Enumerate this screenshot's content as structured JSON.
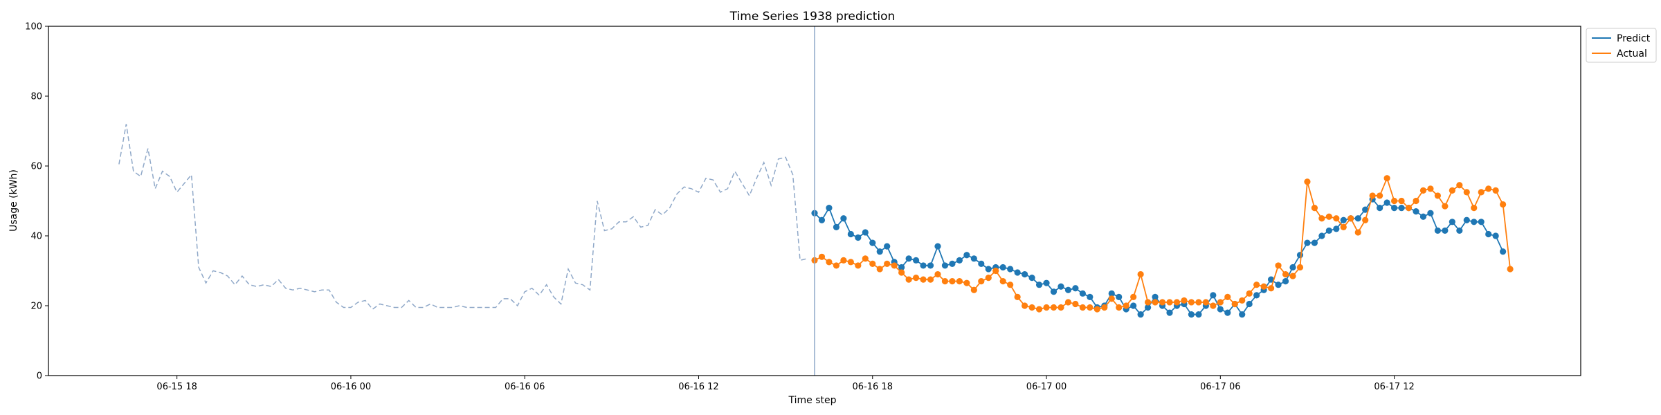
{
  "chart_data": {
    "type": "line",
    "title": "Time Series 1938 prediction",
    "xlabel": "Time step",
    "ylabel": "Usage (kWh)",
    "ylim": [
      0,
      100
    ],
    "yticks": [
      0,
      20,
      40,
      60,
      80,
      100
    ],
    "xlim": [
      "2023-06-15 13:34",
      "2023-06-17 18:26"
    ],
    "xticks": [
      {
        "value": "2023-06-15 18:00",
        "label": "06-15 18"
      },
      {
        "value": "2023-06-16 00:00",
        "label": "06-16 00"
      },
      {
        "value": "2023-06-16 06:00",
        "label": "06-16 06"
      },
      {
        "value": "2023-06-16 12:00",
        "label": "06-16 12"
      },
      {
        "value": "2023-06-16 18:00",
        "label": "06-16 18"
      },
      {
        "value": "2023-06-17 00:00",
        "label": "06-17 00"
      },
      {
        "value": "2023-06-17 06:00",
        "label": "06-17 06"
      },
      {
        "value": "2023-06-17 12:00",
        "label": "06-17 12"
      }
    ],
    "grid": false,
    "legend_position": "top-right",
    "forecast_start": "2023-06-16 16:00",
    "series": [
      {
        "name": "",
        "role": "history",
        "style": "dashed",
        "color": "#8fa8c8",
        "start": "2023-06-15 16:00",
        "step_minutes": 15,
        "values": [
          60.5,
          72.0,
          58.5,
          57.0,
          65.0,
          53.5,
          58.5,
          57.0,
          52.5,
          55.0,
          57.5,
          31.0,
          26.5,
          30.0,
          29.5,
          28.5,
          26.0,
          28.5,
          26.0,
          25.5,
          26.0,
          25.5,
          27.5,
          25.0,
          24.5,
          25.0,
          24.5,
          24.0,
          24.5,
          24.5,
          21.0,
          19.5,
          19.5,
          21.0,
          21.5,
          19.0,
          20.5,
          20.0,
          19.5,
          19.5,
          21.5,
          19.5,
          19.5,
          20.5,
          19.5,
          19.5,
          19.5,
          20.0,
          19.5,
          19.5,
          19.5,
          19.5,
          19.5,
          22.0,
          22.0,
          20.0,
          24.0,
          25.0,
          23.0,
          26.0,
          22.5,
          20.5,
          30.5,
          26.5,
          26.0,
          24.5,
          50.0,
          41.5,
          42.0,
          44.0,
          44.0,
          45.5,
          42.5,
          43.0,
          47.5,
          46.0,
          48.0,
          52.0,
          54.0,
          53.5,
          52.5,
          56.5,
          56.0,
          52.5,
          53.5,
          58.5,
          55.0,
          51.5,
          56.5,
          61.0,
          54.5,
          62.0,
          62.5,
          57.5,
          33.0,
          33.5
        ]
      },
      {
        "name": "Predict",
        "role": "prediction",
        "style": "line-marker",
        "color": "#1f77b4",
        "start": "2023-06-16 16:00",
        "step_minutes": 15,
        "values": [
          46.5,
          44.5,
          48.0,
          42.5,
          45.0,
          40.5,
          39.5,
          41.0,
          38.0,
          35.5,
          37.0,
          32.5,
          31.0,
          33.5,
          33.0,
          31.5,
          31.5,
          37.0,
          31.5,
          32.0,
          33.0,
          34.5,
          33.5,
          32.0,
          30.5,
          31.0,
          31.0,
          30.5,
          29.5,
          29.0,
          28.0,
          26.0,
          26.5,
          24.0,
          25.5,
          24.5,
          25.0,
          23.5,
          22.5,
          19.5,
          20.0,
          23.5,
          22.5,
          19.0,
          20.0,
          17.5,
          19.5,
          22.5,
          20.0,
          18.0,
          20.0,
          20.5,
          17.5,
          17.5,
          20.0,
          23.0,
          19.0,
          18.0,
          20.5,
          17.5,
          20.5,
          23.0,
          24.5,
          27.5,
          26.0,
          27.0,
          31.0,
          34.5,
          38.0,
          38.0,
          40.0,
          41.5,
          42.0,
          44.5,
          45.0,
          45.0,
          47.5,
          50.5,
          48.0,
          49.5,
          48.0,
          48.0,
          48.0,
          47.0,
          45.5,
          46.5,
          41.5,
          41.5,
          44.0,
          41.5,
          44.5,
          44.0,
          44.0,
          40.5,
          40.0,
          35.5
        ]
      },
      {
        "name": "Actual",
        "role": "actual",
        "style": "line-marker",
        "color": "#ff7f0e",
        "start": "2023-06-16 16:00",
        "step_minutes": 15,
        "values": [
          33.0,
          34.0,
          32.5,
          31.5,
          33.0,
          32.5,
          31.5,
          33.5,
          32.0,
          30.5,
          32.0,
          31.5,
          29.5,
          27.5,
          28.0,
          27.5,
          27.5,
          29.0,
          27.0,
          27.0,
          27.0,
          26.5,
          24.5,
          27.0,
          28.0,
          30.0,
          27.0,
          26.0,
          22.5,
          20.0,
          19.5,
          19.0,
          19.5,
          19.5,
          19.5,
          21.0,
          20.5,
          19.5,
          19.5,
          19.0,
          19.5,
          22.0,
          19.5,
          20.0,
          22.5,
          29.0,
          21.0,
          21.0,
          21.0,
          21.0,
          21.0,
          21.5,
          21.0,
          21.0,
          21.0,
          20.0,
          21.0,
          22.5,
          20.5,
          21.5,
          23.5,
          26.0,
          25.5,
          25.0,
          31.5,
          29.0,
          28.5,
          31.0,
          55.5,
          48.0,
          45.0,
          45.5,
          45.0,
          42.5,
          45.0,
          41.0,
          44.5,
          51.5,
          51.5,
          56.5,
          50.0,
          50.0,
          48.0,
          50.0,
          53.0,
          53.5,
          51.5,
          48.5,
          53.0,
          54.5,
          52.5,
          48.0,
          52.5,
          53.5,
          53.0,
          49.0,
          30.5
        ]
      }
    ]
  }
}
